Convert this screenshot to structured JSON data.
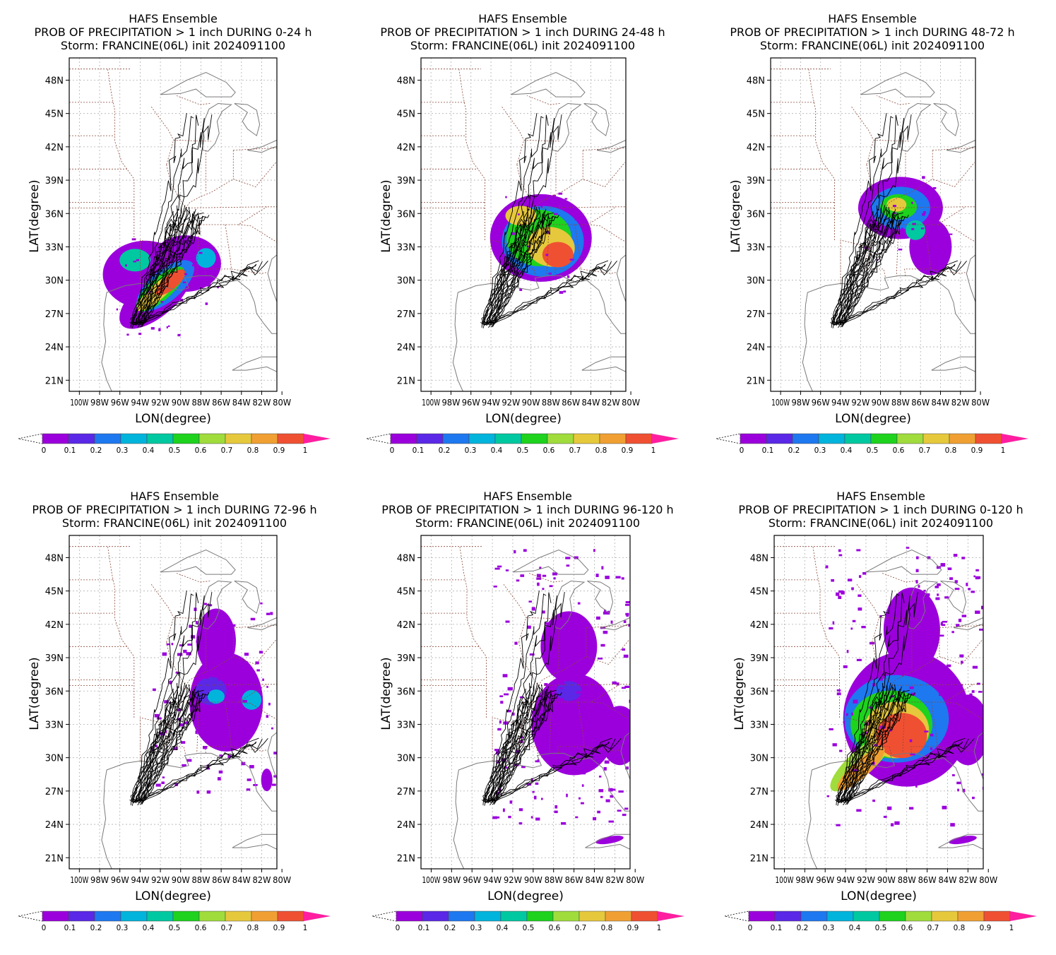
{
  "figure": {
    "panels": [
      {
        "title_line1": "HAFS Ensemble",
        "title_line2": "PROB OF PRECIPITATION > 1 inch DURING  0-24 h",
        "title_line3": "Storm: FRANCINE(06L) init 2024091100"
      },
      {
        "title_line1": "HAFS Ensemble",
        "title_line2": "PROB OF PRECIPITATION > 1 inch DURING 24-48 h",
        "title_line3": "Storm: FRANCINE(06L) init 2024091100"
      },
      {
        "title_line1": "HAFS Ensemble",
        "title_line2": "PROB OF PRECIPITATION > 1 inch DURING 48-72 h",
        "title_line3": "Storm: FRANCINE(06L) init 2024091100"
      },
      {
        "title_line1": "HAFS Ensemble",
        "title_line2": "PROB OF PRECIPITATION > 1 inch DURING 72-96 h",
        "title_line3": "Storm: FRANCINE(06L) init 2024091100"
      },
      {
        "title_line1": "HAFS Ensemble",
        "title_line2": "PROB OF PRECIPITATION > 1 inch DURING 96-120 h",
        "title_line3": "Storm: FRANCINE(06L) init 2024091100"
      },
      {
        "title_line1": "HAFS Ensemble",
        "title_line2": "PROB OF PRECIPITATION > 1 inch DURING 0-120 h",
        "title_line3": "Storm: FRANCINE(06L) init 2024091100"
      }
    ],
    "axes": {
      "xlabel": "LON(degree)",
      "ylabel": "LAT(degree)",
      "lat_ticks": [
        "48N",
        "45N",
        "42N",
        "39N",
        "36N",
        "33N",
        "30N",
        "27N",
        "24N",
        "21N"
      ],
      "lon_ticks": [
        "100W",
        "98W",
        "96W",
        "94W",
        "92W",
        "90W",
        "88W",
        "86W",
        "84W",
        "82W",
        "80W"
      ],
      "lon_range": [
        -101,
        -80.5
      ],
      "lat_range": [
        20,
        50
      ]
    },
    "colorbar": {
      "labels": [
        "0",
        "0.1",
        "0.2",
        "0.3",
        "0.4",
        "0.5",
        "0.6",
        "0.7",
        "0.8",
        "0.9",
        "1"
      ],
      "colors": [
        "#9b00dc",
        "#5a28e6",
        "#1e78f0",
        "#00b4dc",
        "#00c8a0",
        "#1ed21e",
        "#a0dc3c",
        "#e6c83c",
        "#f0a032",
        "#f05032",
        "#ff1ea0"
      ]
    }
  },
  "chart_data": {
    "type": "heatmap",
    "variable": "PROB OF PRECIPITATION > 1 inch",
    "storm": "FRANCINE(06L)",
    "init": "2024091100",
    "ensemble": "HAFS Ensemble",
    "periods": [
      "0-24 h",
      "24-48 h",
      "48-72 h",
      "72-96 h",
      "96-120 h",
      "0-120 h"
    ],
    "color_scale": [
      0,
      0.1,
      0.2,
      0.3,
      0.4,
      0.5,
      0.6,
      0.7,
      0.8,
      0.9,
      1
    ],
    "track_endpoints_approx": {
      "start": [
        -94.5,
        26
      ],
      "end_north": [
        -88,
        44
      ]
    }
  }
}
